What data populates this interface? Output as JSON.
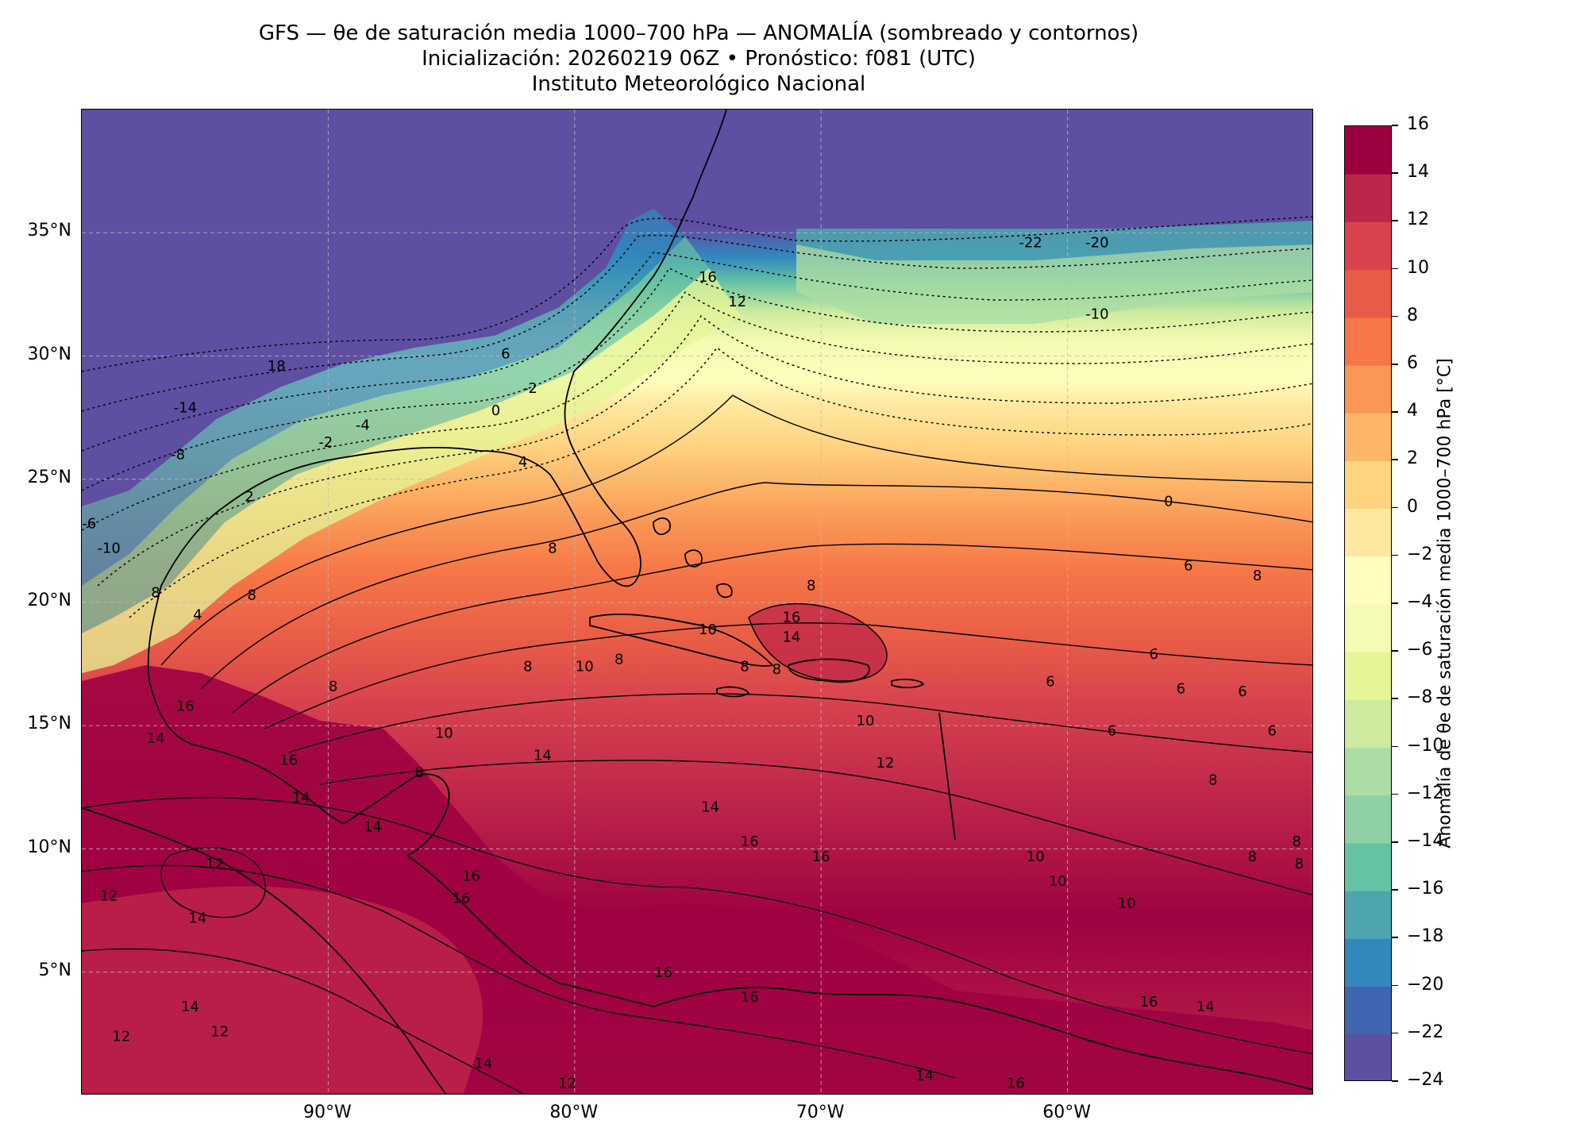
{
  "title": {
    "line1": "GFS — θe de saturación media 1000–700 hPa — ANOMALÍA (sombreado y contornos)",
    "line2": "Inicialización: 20260219 06Z   •   Pronóstico: f081 (UTC)",
    "line3": "Instituto Meteorológico Nacional"
  },
  "map": {
    "lon_range": [
      -100,
      -50
    ],
    "lat_range": [
      0,
      40
    ],
    "x_ticks": [
      {
        "lon": -90,
        "label": "90°W"
      },
      {
        "lon": -80,
        "label": "80°W"
      },
      {
        "lon": -70,
        "label": "70°W"
      },
      {
        "lon": -60,
        "label": "60°W"
      }
    ],
    "y_ticks": [
      {
        "lat": 35,
        "label": "35°N"
      },
      {
        "lat": 30,
        "label": "30°N"
      },
      {
        "lat": 25,
        "label": "25°N"
      },
      {
        "lat": 20,
        "label": "20°N"
      },
      {
        "lat": 15,
        "label": "15°N"
      },
      {
        "lat": 10,
        "label": "10°N"
      },
      {
        "lat": 5,
        "label": "5°N"
      }
    ],
    "gridlines": true,
    "contour_labels": [
      {
        "lon": -61.5,
        "lat": 34.6,
        "text": "-22"
      },
      {
        "lon": -58.8,
        "lat": 34.6,
        "text": "-20"
      },
      {
        "lon": -74.6,
        "lat": 33.2,
        "text": "16"
      },
      {
        "lon": -73.4,
        "lat": 32.2,
        "text": "12"
      },
      {
        "lon": -58.8,
        "lat": 31.7,
        "text": "-10"
      },
      {
        "lon": -92.1,
        "lat": 29.6,
        "text": "18"
      },
      {
        "lon": -82.8,
        "lat": 30.1,
        "text": "6"
      },
      {
        "lon": -95.8,
        "lat": 27.9,
        "text": "-14"
      },
      {
        "lon": -81.8,
        "lat": 28.7,
        "text": "-2"
      },
      {
        "lon": -88.6,
        "lat": 27.2,
        "text": "-4"
      },
      {
        "lon": -83.2,
        "lat": 27.8,
        "text": "0"
      },
      {
        "lon": -96.1,
        "lat": 26.0,
        "text": "-8"
      },
      {
        "lon": -90.1,
        "lat": 26.5,
        "text": "-2"
      },
      {
        "lon": -82.1,
        "lat": 25.7,
        "text": "4"
      },
      {
        "lon": -93.2,
        "lat": 24.3,
        "text": "2"
      },
      {
        "lon": -99.7,
        "lat": 23.2,
        "text": "-6"
      },
      {
        "lon": -98.9,
        "lat": 22.2,
        "text": "-10"
      },
      {
        "lon": -80.9,
        "lat": 22.2,
        "text": "8"
      },
      {
        "lon": -55.9,
        "lat": 24.1,
        "text": "0"
      },
      {
        "lon": -71.2,
        "lat": 19.4,
        "text": "16"
      },
      {
        "lon": -71.2,
        "lat": 18.6,
        "text": "14"
      },
      {
        "lon": -74.6,
        "lat": 18.9,
        "text": "10"
      },
      {
        "lon": -97.0,
        "lat": 20.4,
        "text": "8"
      },
      {
        "lon": -93.1,
        "lat": 20.3,
        "text": "8"
      },
      {
        "lon": -95.3,
        "lat": 19.5,
        "text": "4"
      },
      {
        "lon": -71.8,
        "lat": 17.3,
        "text": "8"
      },
      {
        "lon": -70.4,
        "lat": 20.7,
        "text": "8"
      },
      {
        "lon": -73.1,
        "lat": 17.4,
        "text": "8"
      },
      {
        "lon": -78.2,
        "lat": 17.7,
        "text": "8"
      },
      {
        "lon": -79.6,
        "lat": 17.4,
        "text": "10"
      },
      {
        "lon": -60.7,
        "lat": 16.8,
        "text": "6"
      },
      {
        "lon": -55.4,
        "lat": 16.5,
        "text": "6"
      },
      {
        "lon": -52.9,
        "lat": 16.4,
        "text": "6"
      },
      {
        "lon": -56.5,
        "lat": 17.9,
        "text": "6"
      },
      {
        "lon": -51.7,
        "lat": 14.8,
        "text": "6"
      },
      {
        "lon": -58.2,
        "lat": 14.8,
        "text": "6"
      },
      {
        "lon": -54.1,
        "lat": 12.8,
        "text": "8"
      },
      {
        "lon": -89.8,
        "lat": 16.6,
        "text": "8"
      },
      {
        "lon": -81.9,
        "lat": 17.4,
        "text": "8"
      },
      {
        "lon": -85.3,
        "lat": 14.7,
        "text": "10"
      },
      {
        "lon": -86.3,
        "lat": 13.1,
        "text": "8"
      },
      {
        "lon": -81.3,
        "lat": 13.8,
        "text": "14"
      },
      {
        "lon": -68.2,
        "lat": 15.2,
        "text": "10"
      },
      {
        "lon": -67.4,
        "lat": 13.5,
        "text": "12"
      },
      {
        "lon": -95.8,
        "lat": 15.8,
        "text": "16"
      },
      {
        "lon": -97.0,
        "lat": 14.5,
        "text": "14"
      },
      {
        "lon": -91.6,
        "lat": 13.6,
        "text": "16"
      },
      {
        "lon": -91.1,
        "lat": 12.1,
        "text": "14"
      },
      {
        "lon": -88.2,
        "lat": 10.9,
        "text": "14"
      },
      {
        "lon": -94.6,
        "lat": 9.4,
        "text": "12"
      },
      {
        "lon": -98.9,
        "lat": 8.1,
        "text": "12"
      },
      {
        "lon": -84.2,
        "lat": 8.9,
        "text": "16"
      },
      {
        "lon": -84.6,
        "lat": 8.0,
        "text": "16"
      },
      {
        "lon": -95.3,
        "lat": 7.2,
        "text": "14"
      },
      {
        "lon": -74.5,
        "lat": 11.7,
        "text": "14"
      },
      {
        "lon": -72.9,
        "lat": 10.3,
        "text": "16"
      },
      {
        "lon": -70.0,
        "lat": 9.7,
        "text": "16"
      },
      {
        "lon": -76.4,
        "lat": 5.0,
        "text": "16"
      },
      {
        "lon": -72.9,
        "lat": 4.0,
        "text": "16"
      },
      {
        "lon": -95.6,
        "lat": 3.6,
        "text": "14"
      },
      {
        "lon": -94.4,
        "lat": 2.6,
        "text": "12"
      },
      {
        "lon": -98.4,
        "lat": 2.4,
        "text": "12"
      },
      {
        "lon": -83.7,
        "lat": 1.3,
        "text": "14"
      },
      {
        "lon": -80.3,
        "lat": 0.5,
        "text": "12"
      },
      {
        "lon": -65.8,
        "lat": 0.8,
        "text": "14"
      },
      {
        "lon": -62.1,
        "lat": 0.5,
        "text": "16"
      },
      {
        "lon": -56.7,
        "lat": 3.8,
        "text": "16"
      },
      {
        "lon": -54.4,
        "lat": 3.6,
        "text": "14"
      },
      {
        "lon": -61.3,
        "lat": 9.7,
        "text": "10"
      },
      {
        "lon": -60.4,
        "lat": 8.7,
        "text": "10"
      },
      {
        "lon": -57.6,
        "lat": 7.8,
        "text": "10"
      },
      {
        "lon": -52.5,
        "lat": 9.7,
        "text": "8"
      },
      {
        "lon": -50.6,
        "lat": 9.4,
        "text": "8"
      },
      {
        "lon": -50.7,
        "lat": 10.3,
        "text": "8"
      },
      {
        "lon": -55.1,
        "lat": 21.5,
        "text": "6"
      },
      {
        "lon": -52.3,
        "lat": 21.1,
        "text": "8"
      }
    ]
  },
  "colorbar": {
    "label": "Anomalía de θe de saturación media 1000–700 hPa [°C]",
    "min": -24,
    "max": 16,
    "step": 2,
    "tick_labels": [
      "16",
      "14",
      "12",
      "10",
      "8",
      "6",
      "4",
      "2",
      "0",
      "−2",
      "−4",
      "−6",
      "−8",
      "−10",
      "−12",
      "−14",
      "−16",
      "−18",
      "−20",
      "−22",
      "−24"
    ],
    "colors": [
      "#5e4fa2",
      "#4065b1",
      "#3288bd",
      "#4ea5b0",
      "#66c2a5",
      "#8ed1a4",
      "#abdda4",
      "#cdea9e",
      "#e6f598",
      "#f5fbb2",
      "#fffebe",
      "#fee8a0",
      "#fed481",
      "#fdb567",
      "#fa9656",
      "#f67647",
      "#e85c47",
      "#d8434e",
      "#be254a",
      "#9e0142"
    ]
  }
}
